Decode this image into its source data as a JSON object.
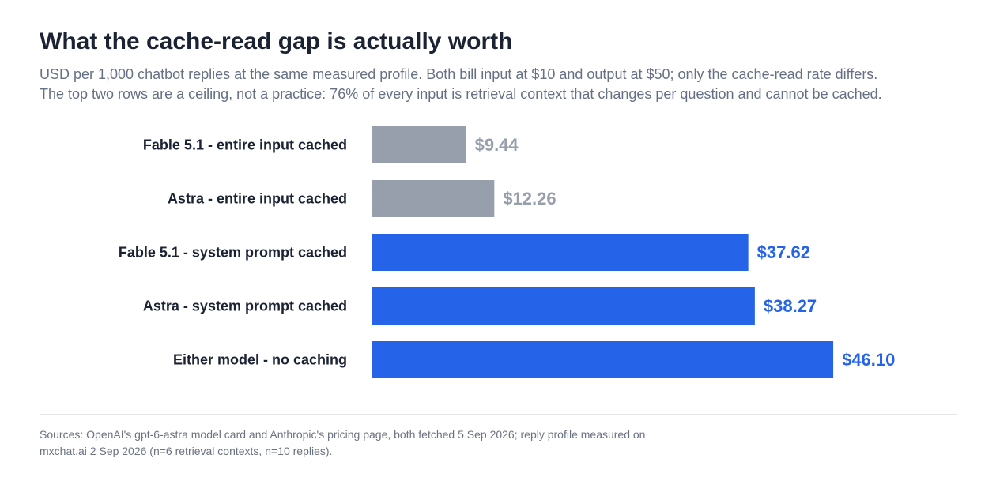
{
  "title": "What the cache-read gap is actually worth",
  "subtitle": {
    "line1": "USD per 1,000 chatbot replies at the same measured profile. Both bill input at $10 and output at $50; only the cache-read rate differs.",
    "line2": "The top two rows are a ceiling, not a practice: 76% of every input is retrieval context that changes per question and cannot be cached."
  },
  "chart_data": {
    "type": "bar",
    "orientation": "horizontal",
    "categories": [
      "Fable 5.1 - entire input cached",
      "Astra - entire input cached",
      "Fable 5.1 - system prompt cached",
      "Astra - system prompt cached",
      "Either model - no caching"
    ],
    "values": [
      9.44,
      12.26,
      37.62,
      38.27,
      46.1
    ],
    "value_labels": [
      "$9.44",
      "$12.26",
      "$37.62",
      "$38.27",
      "$46.10"
    ],
    "bar_colors": [
      "#979fac",
      "#979fac",
      "#2563e8",
      "#2563e8",
      "#2563e8"
    ],
    "xlim": [
      0,
      50
    ],
    "grid": false,
    "axis_visible": false
  },
  "colors": {
    "ceiling": "#979fac",
    "practice": "#2563e8",
    "category_label": "#1a2233"
  },
  "footer": {
    "sources_line1": "Sources: OpenAI's gpt-6-astra model card and Anthropic's pricing page, both fetched 5 Sep 2026; reply profile measured on",
    "sources_line2": "mxchat.ai 2 Sep 2026 (n=6 retrieval contexts, n=10 replies)."
  }
}
